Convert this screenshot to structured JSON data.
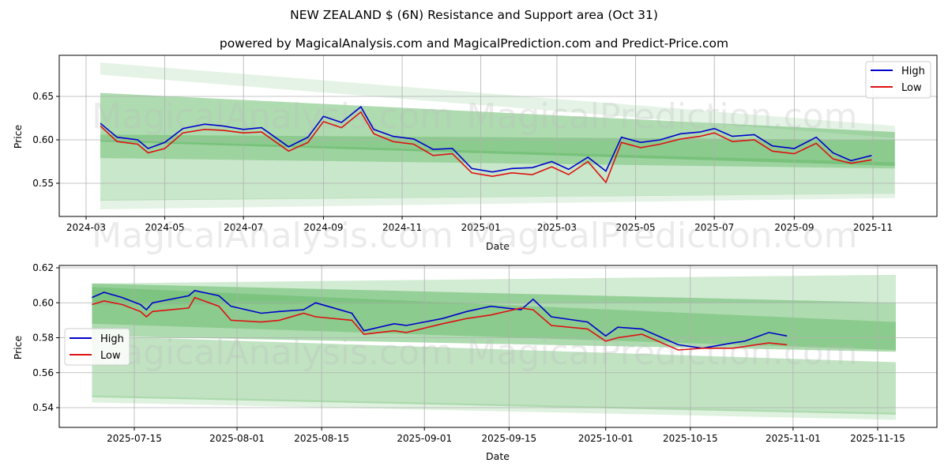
{
  "header": {
    "title": "NEW ZEALAND $ (6N) Resistance and Support area (Oct 31)",
    "subtitle": "powered by MagicalAnalysis.com and MagicalPrediction.com and Predict-Price.com"
  },
  "watermarks": [
    "MagicalAnalysis.com",
    "MagicalPrediction.com"
  ],
  "colors": {
    "high": "#0000cc",
    "low": "#dd1111",
    "band": "#4caf50",
    "grid": "#b0b0b0"
  },
  "chart_data": [
    {
      "type": "line",
      "title": "NEW ZEALAND $ (6N) Resistance and Support area (Oct 31)",
      "xlabel": "Date",
      "ylabel": "Price",
      "ylim": [
        0.512,
        0.695
      ],
      "yticks": [
        "0.55",
        "0.60",
        "0.65"
      ],
      "xticks": [
        "2024-03",
        "2024-05",
        "2024-07",
        "2024-09",
        "2024-11",
        "2025-01",
        "2025-03",
        "2025-05",
        "2025-07",
        "2025-09",
        "2025-11"
      ],
      "legend": {
        "position": "upper right",
        "entries": [
          "High",
          "Low"
        ]
      },
      "grid": true,
      "x": [
        "2024-03-12",
        "2024-03-25",
        "2024-04-10",
        "2024-04-18",
        "2024-05-01",
        "2024-05-15",
        "2024-06-01",
        "2024-06-15",
        "2024-07-01",
        "2024-07-15",
        "2024-08-05",
        "2024-08-20",
        "2024-09-01",
        "2024-09-15",
        "2024-09-30",
        "2024-10-10",
        "2024-10-25",
        "2024-11-10",
        "2024-11-25",
        "2024-12-10",
        "2024-12-25",
        "2025-01-10",
        "2025-01-25",
        "2025-02-10",
        "2025-02-25",
        "2025-03-10",
        "2025-03-25",
        "2025-04-08",
        "2025-04-20",
        "2025-05-05",
        "2025-05-20",
        "2025-06-05",
        "2025-06-20",
        "2025-07-01",
        "2025-07-15",
        "2025-08-01",
        "2025-08-15",
        "2025-09-01",
        "2025-09-18",
        "2025-10-01",
        "2025-10-15",
        "2025-10-31"
      ],
      "series": [
        {
          "name": "High",
          "values": [
            0.619,
            0.603,
            0.6,
            0.59,
            0.597,
            0.613,
            0.618,
            0.616,
            0.612,
            0.614,
            0.592,
            0.603,
            0.627,
            0.62,
            0.638,
            0.612,
            0.604,
            0.601,
            0.589,
            0.59,
            0.567,
            0.563,
            0.567,
            0.568,
            0.575,
            0.566,
            0.58,
            0.564,
            0.603,
            0.597,
            0.6,
            0.607,
            0.609,
            0.613,
            0.604,
            0.606,
            0.593,
            0.59,
            0.603,
            0.585,
            0.576,
            0.582
          ]
        },
        {
          "name": "Low",
          "values": [
            0.616,
            0.598,
            0.595,
            0.585,
            0.59,
            0.608,
            0.612,
            0.611,
            0.608,
            0.609,
            0.587,
            0.597,
            0.621,
            0.614,
            0.632,
            0.607,
            0.598,
            0.595,
            0.582,
            0.584,
            0.562,
            0.558,
            0.562,
            0.56,
            0.569,
            0.56,
            0.575,
            0.551,
            0.597,
            0.591,
            0.595,
            0.601,
            0.604,
            0.608,
            0.598,
            0.6,
            0.587,
            0.584,
            0.596,
            0.578,
            0.573,
            0.577
          ]
        }
      ],
      "bands": [
        {
          "name": "outer-upper",
          "start": [
            0.675,
            0.689
          ],
          "end": [
            0.602,
            0.616
          ]
        },
        {
          "name": "resistance",
          "start": [
            0.598,
            0.654
          ],
          "end": [
            0.57,
            0.609
          ]
        },
        {
          "name": "core",
          "start": [
            0.579,
            0.606
          ],
          "end": [
            0.567,
            0.6
          ]
        },
        {
          "name": "support",
          "start": [
            0.53,
            0.6
          ],
          "end": [
            0.538,
            0.574
          ]
        },
        {
          "name": "outer-lower",
          "start": [
            0.52,
            0.531
          ],
          "end": [
            0.533,
            0.538
          ]
        }
      ]
    },
    {
      "type": "line",
      "xlabel": "Date",
      "ylabel": "Price",
      "ylim": [
        0.529,
        0.621
      ],
      "yticks": [
        "0.54",
        "0.56",
        "0.58",
        "0.60",
        "0.62"
      ],
      "xticks": [
        "2025-07-15",
        "2025-08-01",
        "2025-08-15",
        "2025-09-01",
        "2025-09-15",
        "2025-10-01",
        "2025-10-15",
        "2025-11-01",
        "2025-11-15"
      ],
      "legend": {
        "position": "center left",
        "entries": [
          "High",
          "Low"
        ]
      },
      "grid": true,
      "x": [
        "2025-07-08",
        "2025-07-10",
        "2025-07-13",
        "2025-07-16",
        "2025-07-17",
        "2025-07-18",
        "2025-07-24",
        "2025-07-25",
        "2025-07-29",
        "2025-07-31",
        "2025-08-05",
        "2025-08-08",
        "2025-08-12",
        "2025-08-14",
        "2025-08-20",
        "2025-08-22",
        "2025-08-27",
        "2025-08-29",
        "2025-09-04",
        "2025-09-08",
        "2025-09-12",
        "2025-09-17",
        "2025-09-19",
        "2025-09-22",
        "2025-09-28",
        "2025-10-01",
        "2025-10-03",
        "2025-10-07",
        "2025-10-13",
        "2025-10-17",
        "2025-10-22",
        "2025-10-24",
        "2025-10-28",
        "2025-10-31"
      ],
      "series": [
        {
          "name": "High",
          "values": [
            0.603,
            0.606,
            0.603,
            0.599,
            0.596,
            0.6,
            0.604,
            0.607,
            0.604,
            0.598,
            0.594,
            0.595,
            0.596,
            0.6,
            0.594,
            0.584,
            0.588,
            0.587,
            0.591,
            0.595,
            0.598,
            0.596,
            0.602,
            0.592,
            0.589,
            0.581,
            0.586,
            0.585,
            0.576,
            0.574,
            0.577,
            0.578,
            0.583,
            0.581
          ]
        },
        {
          "name": "Low",
          "values": [
            0.599,
            0.601,
            0.599,
            0.595,
            0.592,
            0.595,
            0.597,
            0.603,
            0.598,
            0.59,
            0.589,
            0.59,
            0.594,
            0.592,
            0.59,
            0.582,
            0.584,
            0.583,
            0.588,
            0.591,
            0.593,
            0.597,
            0.596,
            0.587,
            0.585,
            0.578,
            0.58,
            0.582,
            0.573,
            0.574,
            0.574,
            0.575,
            0.577,
            0.576
          ]
        }
      ],
      "bands": [
        {
          "name": "outer-upper",
          "start": [
            0.599,
            0.611
          ],
          "end": [
            0.6,
            0.616
          ]
        },
        {
          "name": "resistance",
          "start": [
            0.581,
            0.611
          ],
          "end": [
            0.572,
            0.6
          ]
        },
        {
          "name": "core",
          "start": [
            0.588,
            0.609
          ],
          "end": [
            0.573,
            0.589
          ]
        },
        {
          "name": "support",
          "start": [
            0.546,
            0.581
          ],
          "end": [
            0.536,
            0.566
          ]
        },
        {
          "name": "outer-lower",
          "start": [
            0.543,
            0.547
          ],
          "end": [
            0.533,
            0.537
          ]
        }
      ]
    }
  ]
}
